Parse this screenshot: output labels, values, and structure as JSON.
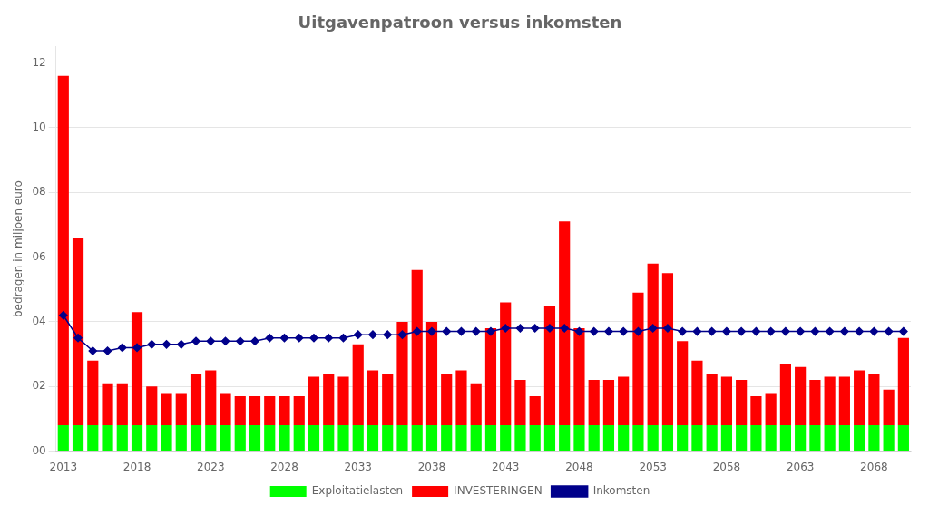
{
  "chart_data": {
    "type": "bar",
    "title": "Uitgavenpatroon versus inkomsten",
    "ylabel": "bedragen in miljoen euro",
    "categories": [
      "2013",
      null,
      null,
      null,
      null,
      "2018",
      null,
      null,
      null,
      null,
      "2023",
      null,
      null,
      null,
      null,
      "2028",
      null,
      null,
      null,
      null,
      "2033",
      null,
      null,
      null,
      null,
      "2038",
      null,
      null,
      null,
      null,
      "2043",
      null,
      null,
      null,
      null,
      "2048",
      null,
      null,
      null,
      null,
      "2053",
      null,
      null,
      null,
      null,
      "2058",
      null,
      null,
      null,
      null,
      "2063",
      null,
      null,
      null,
      null,
      "2068",
      null,
      null
    ],
    "series": [
      {
        "name": "Exploitatielasten",
        "type": "bar",
        "color": "#00ff00",
        "values": [
          0.8,
          0.8,
          0.8,
          0.8,
          0.8,
          0.8,
          0.8,
          0.8,
          0.8,
          0.8,
          0.8,
          0.8,
          0.8,
          0.8,
          0.8,
          0.8,
          0.8,
          0.8,
          0.8,
          0.8,
          0.8,
          0.8,
          0.8,
          0.8,
          0.8,
          0.8,
          0.8,
          0.8,
          0.8,
          0.8,
          0.8,
          0.8,
          0.8,
          0.8,
          0.8,
          0.8,
          0.8,
          0.8,
          0.8,
          0.8,
          0.8,
          0.8,
          0.8,
          0.8,
          0.8,
          0.8,
          0.8,
          0.8,
          0.8,
          0.8,
          0.8,
          0.8,
          0.8,
          0.8,
          0.8,
          0.8,
          0.8,
          0.8
        ]
      },
      {
        "name": "INVESTERINGEN",
        "type": "bar",
        "color": "#ff0000",
        "values": [
          10.8,
          5.8,
          2.0,
          1.3,
          1.3,
          3.5,
          1.2,
          1.0,
          1.0,
          1.6,
          1.7,
          1.0,
          0.9,
          0.9,
          0.9,
          0.9,
          0.9,
          1.5,
          1.6,
          1.5,
          2.5,
          1.7,
          1.6,
          3.2,
          4.8,
          3.2,
          1.6,
          1.7,
          1.3,
          3.0,
          3.8,
          1.4,
          0.9,
          3.7,
          6.3,
          3.0,
          1.4,
          1.4,
          1.5,
          4.1,
          5.0,
          4.7,
          2.6,
          2.0,
          1.6,
          1.5,
          1.4,
          0.9,
          1.0,
          1.9,
          1.8,
          1.4,
          1.5,
          1.5,
          1.7,
          1.6,
          1.1,
          2.7
        ]
      },
      {
        "name": "Inkomsten",
        "type": "line",
        "color": "#00008b",
        "marker": "diamond",
        "line_style": "solid",
        "values": [
          4.2,
          3.5,
          3.1,
          3.1,
          3.2,
          3.2,
          3.3,
          3.3,
          3.3,
          3.4,
          3.4,
          3.4,
          3.4,
          3.4,
          3.5,
          3.5,
          3.5,
          3.5,
          3.5,
          3.5,
          3.6,
          3.6,
          3.6,
          3.6,
          3.7,
          3.7,
          3.7,
          3.7,
          3.7,
          3.7,
          3.8,
          3.8,
          3.8,
          3.8,
          3.8,
          3.7,
          3.7,
          3.7,
          3.7,
          3.7,
          3.8,
          3.8,
          3.7,
          3.7,
          3.7,
          3.7,
          3.7,
          3.7,
          3.7,
          3.7,
          3.7,
          3.7,
          3.7,
          3.7,
          3.7,
          3.7,
          3.7,
          3.7
        ]
      }
    ],
    "stacked": true,
    "ylim": [
      0,
      12.5
    ],
    "yticks": [
      {
        "value": 0,
        "label": "00"
      },
      {
        "value": 2,
        "label": "02"
      },
      {
        "value": 4,
        "label": "04"
      },
      {
        "value": 6,
        "label": "06"
      },
      {
        "value": 8,
        "label": "08"
      },
      {
        "value": 10,
        "label": "10"
      },
      {
        "value": 12,
        "label": "12"
      }
    ],
    "grid": true,
    "legend": "bottom"
  }
}
